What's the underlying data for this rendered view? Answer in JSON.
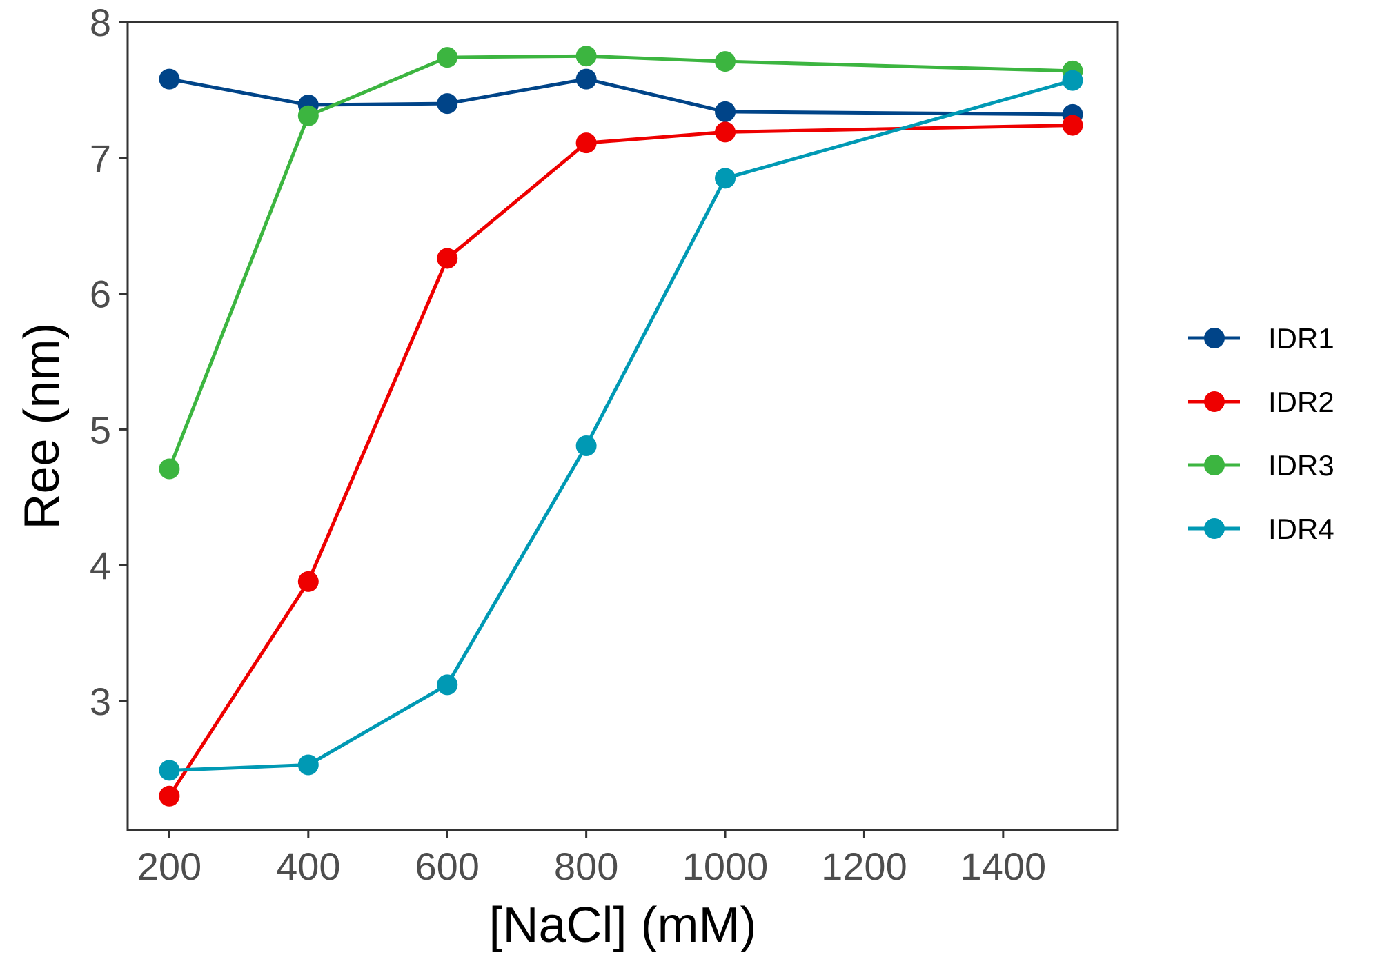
{
  "chart_data": {
    "type": "line",
    "title": "",
    "xlabel": "[NaCl] (mM)",
    "ylabel": "Ree (nm)",
    "xlim": [
      140,
      1565
    ],
    "ylim": [
      2.05,
      8.0
    ],
    "x_ticks": [
      200,
      400,
      600,
      800,
      1000,
      1200,
      1400
    ],
    "y_ticks": [
      3,
      4,
      5,
      6,
      7,
      8
    ],
    "grid": false,
    "legend_position": "right",
    "series": [
      {
        "name": "IDR1",
        "color": "#004488",
        "x": [
          200,
          400,
          600,
          800,
          1000,
          1500
        ],
        "y": [
          7.58,
          7.39,
          7.4,
          7.58,
          7.34,
          7.32
        ]
      },
      {
        "name": "IDR2",
        "color": "#ee0000",
        "x": [
          200,
          400,
          600,
          800,
          1000,
          1500
        ],
        "y": [
          2.3,
          3.88,
          6.26,
          7.11,
          7.19,
          7.24
        ]
      },
      {
        "name": "IDR3",
        "color": "#3cb540",
        "x": [
          200,
          400,
          600,
          800,
          1000,
          1500
        ],
        "y": [
          4.71,
          7.31,
          7.74,
          7.75,
          7.71,
          7.64
        ]
      },
      {
        "name": "IDR4",
        "color": "#0099b4",
        "x": [
          200,
          400,
          600,
          800,
          1000,
          1500
        ],
        "y": [
          2.49,
          2.53,
          3.12,
          4.88,
          6.85,
          7.57
        ]
      }
    ]
  }
}
